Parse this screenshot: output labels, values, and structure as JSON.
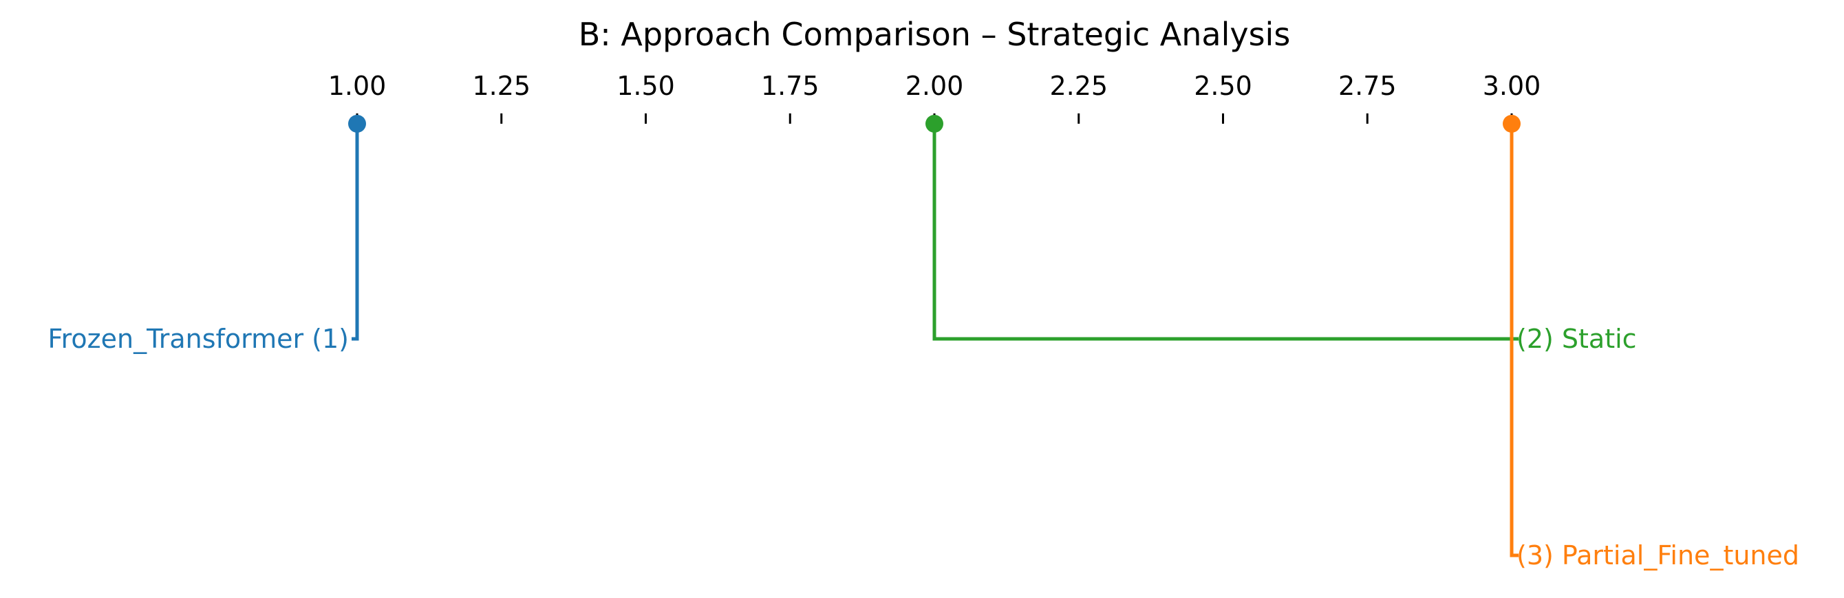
{
  "chart_data": {
    "type": "critical-difference",
    "title": "B: Approach Comparison – Strategic Analysis",
    "axis": {
      "range": [
        1.0,
        3.0
      ],
      "ticks": [
        "1.00",
        "1.25",
        "1.50",
        "1.75",
        "2.00",
        "2.25",
        "2.50",
        "2.75",
        "3.00"
      ]
    },
    "methods": [
      {
        "name": "Frozen_Transformer",
        "rank": 1.0,
        "label": "Frozen_Transformer (1)",
        "color": "#1f77b4",
        "side": "left"
      },
      {
        "name": "Static",
        "rank": 2.0,
        "label": "(2) Static",
        "color": "#2ca02c",
        "side": "right"
      },
      {
        "name": "Partial_Fine_tuned",
        "rank": 3.0,
        "label": "(3) Partial_Fine_tuned",
        "color": "#ff7f0e",
        "side": "right"
      }
    ]
  }
}
